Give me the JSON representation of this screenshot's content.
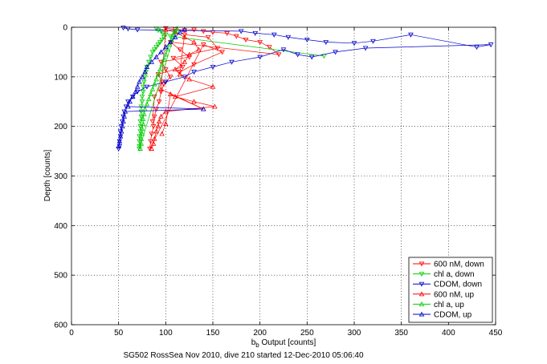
{
  "chart_data": {
    "type": "scatter",
    "xlabel": "b_b Output [counts]",
    "xlabel_main": "b",
    "xlabel_sub": "b",
    "xlabel_rest": " Output [counts]",
    "ylabel": "Depth [counts]",
    "caption": "SG502 RossSea Nov 2010, dive 210 started 12-Dec-2010 05:06:40",
    "xlim": [
      0,
      450
    ],
    "ylim": [
      600,
      0
    ],
    "y_reversed": true,
    "xticks": [
      "0",
      "50",
      "100",
      "150",
      "200",
      "250",
      "300",
      "350",
      "400",
      "450"
    ],
    "yticks": [
      "0",
      "100",
      "200",
      "300",
      "400",
      "500",
      "600"
    ],
    "grid": true,
    "legend_position": "bottom-right",
    "series": [
      {
        "name": "600 nM, down",
        "color": "#ff0000",
        "marker": "triangle-down",
        "points": [
          [
            100,
            2
          ],
          [
            110,
            4
          ],
          [
            120,
            6
          ],
          [
            130,
            5
          ],
          [
            140,
            8
          ],
          [
            150,
            10
          ],
          [
            165,
            12
          ],
          [
            175,
            18
          ],
          [
            185,
            25
          ],
          [
            200,
            30
          ],
          [
            210,
            40
          ],
          [
            220,
            55
          ],
          [
            105,
            30
          ],
          [
            115,
            45
          ],
          [
            125,
            60
          ],
          [
            95,
            70
          ],
          [
            100,
            85
          ],
          [
            105,
            100
          ],
          [
            98,
            115
          ],
          [
            95,
            130
          ],
          [
            93,
            150
          ],
          [
            90,
            165
          ],
          [
            88,
            180
          ],
          [
            87,
            200
          ],
          [
            85,
            215
          ],
          [
            84,
            230
          ],
          [
            83,
            245
          ],
          [
            140,
            35
          ],
          [
            160,
            50
          ],
          [
            130,
            75
          ],
          [
            115,
            90
          ],
          [
            120,
            15
          ],
          [
            145,
            20
          ],
          [
            155,
            42
          ],
          [
            108,
            62
          ],
          [
            118,
            80
          ],
          [
            92,
            95
          ],
          [
            96,
            110
          ],
          [
            88,
            140
          ],
          [
            86,
            190
          ]
        ]
      },
      {
        "name": "chl a, down",
        "color": "#00cc00",
        "marker": "triangle-down",
        "points": [
          [
            90,
            3
          ],
          [
            92,
            6
          ],
          [
            95,
            8
          ],
          [
            97,
            12
          ],
          [
            100,
            15
          ],
          [
            98,
            20
          ],
          [
            96,
            25
          ],
          [
            94,
            30
          ],
          [
            92,
            35
          ],
          [
            90,
            40
          ],
          [
            88,
            45
          ],
          [
            86,
            50
          ],
          [
            84,
            60
          ],
          [
            82,
            70
          ],
          [
            80,
            80
          ],
          [
            79,
            90
          ],
          [
            78,
            100
          ],
          [
            77,
            110
          ],
          [
            76,
            120
          ],
          [
            76,
            130
          ],
          [
            75,
            140
          ],
          [
            75,
            150
          ],
          [
            74,
            160
          ],
          [
            74,
            170
          ],
          [
            74,
            180
          ],
          [
            73,
            190
          ],
          [
            73,
            200
          ],
          [
            73,
            210
          ],
          [
            72,
            220
          ],
          [
            72,
            230
          ],
          [
            72,
            240
          ],
          [
            72,
            245
          ],
          [
            110,
            10
          ],
          [
            105,
            18
          ],
          [
            268,
            58
          ]
        ]
      },
      {
        "name": "CDOM, down",
        "color": "#0000cc",
        "marker": "triangle-down",
        "points": [
          [
            55,
            1
          ],
          [
            60,
            3
          ],
          [
            70,
            5
          ],
          [
            180,
            8
          ],
          [
            195,
            12
          ],
          [
            215,
            15
          ],
          [
            230,
            20
          ],
          [
            250,
            25
          ],
          [
            270,
            30
          ],
          [
            300,
            32
          ],
          [
            320,
            28
          ],
          [
            360,
            15
          ],
          [
            430,
            40
          ],
          [
            445,
            35
          ],
          [
            312,
            42
          ],
          [
            280,
            50
          ],
          [
            255,
            60
          ],
          [
            240,
            55
          ],
          [
            225,
            45
          ],
          [
            200,
            60
          ],
          [
            170,
            70
          ],
          [
            150,
            80
          ],
          [
            130,
            90
          ],
          [
            120,
            100
          ],
          [
            100,
            110
          ],
          [
            80,
            120
          ],
          [
            70,
            130
          ],
          [
            65,
            140
          ],
          [
            60,
            150
          ],
          [
            58,
            160
          ],
          [
            56,
            170
          ],
          [
            55,
            180
          ],
          [
            54,
            190
          ],
          [
            53,
            200
          ],
          [
            52,
            210
          ],
          [
            52,
            220
          ],
          [
            51,
            230
          ],
          [
            51,
            240
          ],
          [
            50,
            245
          ]
        ]
      },
      {
        "name": "600 nM, up",
        "color": "#ff0000",
        "marker": "triangle-up",
        "points": [
          [
            85,
            245
          ],
          [
            87,
            235
          ],
          [
            88,
            225
          ],
          [
            90,
            210
          ],
          [
            92,
            200
          ],
          [
            93,
            190
          ],
          [
            95,
            180
          ],
          [
            100,
            170
          ],
          [
            152,
            160
          ],
          [
            130,
            150
          ],
          [
            110,
            140
          ],
          [
            150,
            120
          ],
          [
            125,
            105
          ],
          [
            115,
            95
          ],
          [
            110,
            85
          ],
          [
            120,
            70
          ],
          [
            125,
            55
          ],
          [
            135,
            45
          ],
          [
            130,
            30
          ],
          [
            120,
            20
          ],
          [
            110,
            10
          ],
          [
            100,
            5
          ],
          [
            95,
            125
          ],
          [
            140,
            165
          ],
          [
            105,
            135
          ],
          [
            100,
            195
          ],
          [
            96,
            215
          ]
        ]
      },
      {
        "name": "chl a, up",
        "color": "#00cc00",
        "marker": "triangle-up",
        "points": [
          [
            73,
            245
          ],
          [
            74,
            235
          ],
          [
            74,
            225
          ],
          [
            75,
            215
          ],
          [
            75,
            205
          ],
          [
            76,
            195
          ],
          [
            76,
            185
          ],
          [
            77,
            175
          ],
          [
            78,
            165
          ],
          [
            80,
            155
          ],
          [
            82,
            145
          ],
          [
            84,
            135
          ],
          [
            86,
            125
          ],
          [
            88,
            115
          ],
          [
            90,
            105
          ],
          [
            92,
            95
          ],
          [
            94,
            85
          ],
          [
            96,
            75
          ],
          [
            98,
            65
          ],
          [
            100,
            55
          ],
          [
            102,
            45
          ],
          [
            104,
            35
          ],
          [
            106,
            25
          ],
          [
            108,
            15
          ],
          [
            110,
            8
          ],
          [
            112,
            3
          ]
        ]
      },
      {
        "name": "CDOM, up",
        "color": "#0000cc",
        "marker": "triangle-up",
        "points": [
          [
            50,
            240
          ],
          [
            51,
            230
          ],
          [
            52,
            220
          ],
          [
            53,
            210
          ],
          [
            54,
            200
          ],
          [
            55,
            190
          ],
          [
            56,
            180
          ],
          [
            57,
            170
          ],
          [
            140,
            165
          ],
          [
            60,
            160
          ],
          [
            62,
            150
          ],
          [
            65,
            140
          ],
          [
            68,
            130
          ],
          [
            70,
            120
          ],
          [
            72,
            110
          ],
          [
            75,
            100
          ],
          [
            78,
            90
          ],
          [
            80,
            80
          ],
          [
            85,
            70
          ],
          [
            90,
            60
          ],
          [
            95,
            50
          ],
          [
            100,
            40
          ],
          [
            105,
            30
          ],
          [
            110,
            20
          ],
          [
            115,
            10
          ],
          [
            120,
            5
          ]
        ]
      }
    ]
  }
}
